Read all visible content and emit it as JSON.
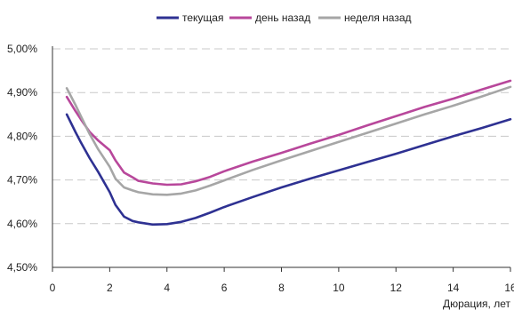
{
  "chart_data": {
    "type": "line",
    "title": "",
    "xlabel": "Дюрация, лет",
    "ylabel": "",
    "xlim": [
      0,
      16
    ],
    "ylim": [
      4.5,
      5.0
    ],
    "x_ticks": [
      0,
      2,
      4,
      6,
      8,
      10,
      12,
      14,
      16
    ],
    "x_tick_labels": [
      "0",
      "2",
      "4",
      "6",
      "8",
      "10",
      "12",
      "14",
      "16"
    ],
    "y_ticks": [
      4.5,
      4.6,
      4.7,
      4.8,
      4.9,
      5.0
    ],
    "y_tick_labels": [
      "4,50%",
      "4,60%",
      "4,70%",
      "4,80%",
      "4,90%",
      "5,00%"
    ],
    "grid": "horizontal dashed",
    "legend_position": "top",
    "series": [
      {
        "name": "текущая",
        "color": "#2e3192",
        "x": [
          0.5,
          0.8,
          1.0,
          1.3,
          1.6,
          2.0,
          2.2,
          2.5,
          2.8,
          3.0,
          3.5,
          4.0,
          4.5,
          5.0,
          5.5,
          6.0,
          7.0,
          8.0,
          9.0,
          10.0,
          11.0,
          12.0,
          13.0,
          14.0,
          15.0,
          16.0
        ],
        "values": [
          4.85,
          4.81,
          4.785,
          4.75,
          4.718,
          4.672,
          4.643,
          4.616,
          4.606,
          4.603,
          4.598,
          4.599,
          4.604,
          4.613,
          4.625,
          4.638,
          4.661,
          4.683,
          4.703,
          4.722,
          4.741,
          4.76,
          4.78,
          4.8,
          4.819,
          4.839
        ]
      },
      {
        "name": "день назад",
        "color": "#b8479b",
        "x": [
          0.5,
          0.8,
          1.0,
          1.3,
          1.6,
          2.0,
          2.2,
          2.5,
          2.8,
          3.0,
          3.5,
          4.0,
          4.5,
          5.0,
          5.5,
          6.0,
          7.0,
          8.0,
          9.0,
          10.0,
          11.0,
          12.0,
          13.0,
          14.0,
          15.0,
          16.0
        ],
        "values": [
          4.89,
          4.858,
          4.838,
          4.81,
          4.79,
          4.768,
          4.745,
          4.717,
          4.706,
          4.698,
          4.692,
          4.689,
          4.69,
          4.697,
          4.707,
          4.72,
          4.742,
          4.762,
          4.783,
          4.803,
          4.825,
          4.846,
          4.867,
          4.886,
          4.907,
          4.927
        ]
      },
      {
        "name": "неделя назад",
        "color": "#a6a6a6",
        "x": [
          0.5,
          0.8,
          1.0,
          1.3,
          1.6,
          2.0,
          2.2,
          2.5,
          2.8,
          3.0,
          3.5,
          4.0,
          4.5,
          5.0,
          5.5,
          6.0,
          7.0,
          8.0,
          9.0,
          10.0,
          11.0,
          12.0,
          13.0,
          14.0,
          15.0,
          16.0
        ],
        "values": [
          4.91,
          4.872,
          4.845,
          4.805,
          4.77,
          4.73,
          4.703,
          4.683,
          4.676,
          4.672,
          4.667,
          4.666,
          4.669,
          4.676,
          4.687,
          4.699,
          4.723,
          4.745,
          4.766,
          4.787,
          4.808,
          4.829,
          4.85,
          4.87,
          4.891,
          4.913
        ]
      }
    ]
  }
}
